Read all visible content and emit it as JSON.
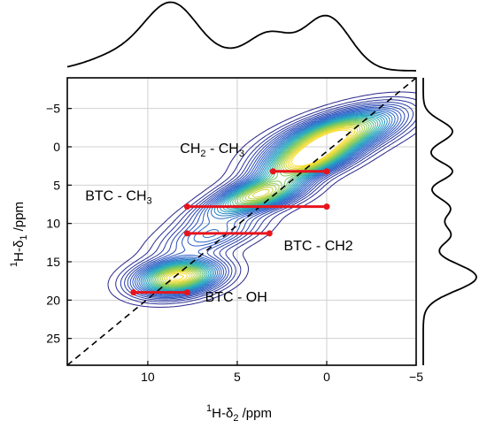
{
  "chart_data": {
    "type": "contour",
    "xlabel_main": "H-δ",
    "xlabel_sup": "1",
    "xlabel_sub": "2",
    "xlabel_unit": " /ppm",
    "ylabel_main": "H-δ",
    "ylabel_sup": "1",
    "ylabel_sub": "1",
    "ylabel_unit": " /ppm",
    "xlim": [
      14.5,
      -5
    ],
    "ylim": [
      28.5,
      -9
    ],
    "x_reversed": true,
    "y_reversed": true,
    "grid": true,
    "x_ticks": [
      10,
      5,
      0,
      -5
    ],
    "x_tick_labels": [
      "10",
      "5",
      "0",
      "−5"
    ],
    "y_ticks": [
      -5,
      0,
      5,
      10,
      15,
      20,
      25
    ],
    "y_tick_labels": [
      "−5",
      "0",
      "5",
      "10",
      "15",
      "20",
      "25"
    ],
    "diagonal": true,
    "annotations": [
      {
        "text_a": "CH",
        "sub_a": "2",
        "text_b": " - CH",
        "sub_b": "3",
        "x": 8.2,
        "y": 0.8
      },
      {
        "text_a": "BTC - CH",
        "sub_a": "3",
        "text_b": "",
        "sub_b": "",
        "x": 13.5,
        "y": 7.0
      },
      {
        "text_a": "BTC - CH2",
        "sub_a": "",
        "text_b": "",
        "sub_b": "",
        "x": 2.4,
        "y": 13.5
      },
      {
        "text_a": "BTC - OH",
        "sub_a": "",
        "text_b": "",
        "sub_b": "",
        "x": 6.8,
        "y": 20.2
      }
    ],
    "correlation_lines": [
      {
        "x1": 3.0,
        "x2": 0.0,
        "y": 3.2
      },
      {
        "x1": 7.8,
        "x2": 0.0,
        "y": 7.8
      },
      {
        "x1": 7.8,
        "x2": 3.2,
        "y": 11.3
      },
      {
        "x1": 10.8,
        "x2": 7.8,
        "y": 19.0
      }
    ],
    "peaks": [
      {
        "x": -0.5,
        "y": -1.5,
        "sx": 2.8,
        "sy": 1.3,
        "amp": 1.0
      },
      {
        "x": 1.2,
        "y": 2.0,
        "sx": 2.0,
        "sy": 1.1,
        "amp": 0.8
      },
      {
        "x": 3.5,
        "y": 6.0,
        "sx": 1.8,
        "sy": 1.1,
        "amp": 0.75
      },
      {
        "x": 8.3,
        "y": 17.0,
        "sx": 1.7,
        "sy": 1.3,
        "amp": 1.0
      },
      {
        "x": 6.5,
        "y": 11.5,
        "sx": 2.2,
        "sy": 1.2,
        "amp": 0.35
      },
      {
        "x": 5.5,
        "y": 7.8,
        "sx": 2.0,
        "sy": 0.9,
        "amp": 0.28
      }
    ],
    "projection_top": [
      {
        "c": 8.6,
        "w": 1.5,
        "a": 1.0
      },
      {
        "c": 3.2,
        "w": 1.2,
        "a": 0.55
      },
      {
        "c": 0.0,
        "w": 1.3,
        "a": 0.85
      },
      {
        "c": 11.5,
        "w": 1.8,
        "a": 0.25
      },
      {
        "c": 5.5,
        "w": 1.2,
        "a": 0.15
      }
    ],
    "projection_right": [
      {
        "c": -2.0,
        "w": 1.4,
        "a": 0.55
      },
      {
        "c": 3.2,
        "w": 1.2,
        "a": 0.55
      },
      {
        "c": 8.0,
        "w": 1.3,
        "a": 0.5
      },
      {
        "c": 11.5,
        "w": 1.3,
        "a": 0.5
      },
      {
        "c": 17.0,
        "w": 1.8,
        "a": 1.0
      }
    ],
    "colors": {
      "line": "#e8141c",
      "diagonal": "#000000",
      "projection": "#000000",
      "grid": "#d0d0d0"
    }
  }
}
